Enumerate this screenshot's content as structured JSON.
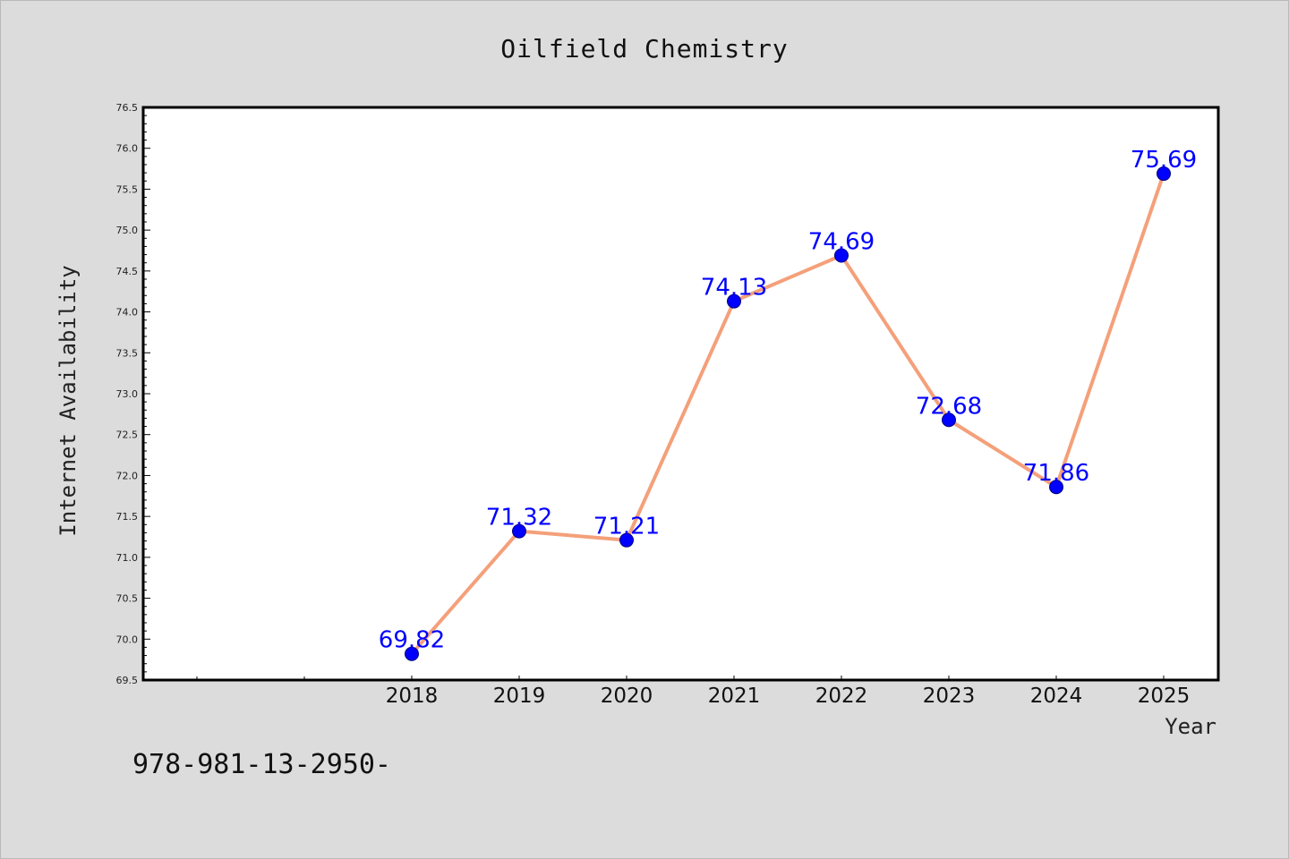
{
  "chart_data": {
    "type": "line",
    "title": "Oilfield Chemistry",
    "xlabel": "Year",
    "ylabel": "Internet Availability",
    "categories": [
      "2018",
      "2019",
      "2020",
      "2021",
      "2022",
      "2023",
      "2024",
      "2025"
    ],
    "series": [
      {
        "values": [
          69.82,
          71.32,
          71.21,
          74.13,
          74.69,
          72.68,
          71.86,
          75.69
        ],
        "data_labels": [
          "69.82",
          "71.32",
          "71.21",
          "74.13",
          "74.69",
          "72.68",
          "71.86",
          "75.69"
        ],
        "line_color": "#f4a07a",
        "marker_color": "#0000ff"
      }
    ],
    "ylim": [
      69.5,
      76.5
    ],
    "yticks": [
      "69.5",
      "70.0",
      "70.5",
      "71.0",
      "71.5",
      "72.0",
      "72.5",
      "73.0",
      "73.5",
      "74.0",
      "74.5",
      "75.0",
      "75.5",
      "76.0",
      "76.5"
    ],
    "grid": false,
    "legend": "none"
  },
  "footer": {
    "code": "978-981-13-2950-"
  },
  "colors": {
    "background": "#dcdcdc",
    "plot_background": "#ffffff",
    "label_color": "#0000ff"
  }
}
